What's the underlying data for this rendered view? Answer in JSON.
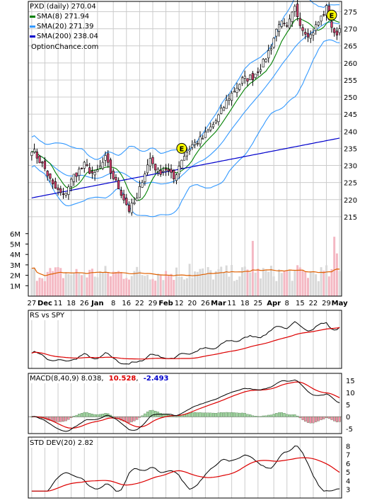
{
  "chart_data": [
    {
      "type": "candlestick",
      "title": "PXD (daily) 270.04",
      "source_label": "OptionChance.com",
      "legend": [
        {
          "label": "SMA(8) 271.94",
          "color": "#008000"
        },
        {
          "label": "SMA(20) 271.39",
          "color": "#3399ff"
        },
        {
          "label": "SMA(200) 238.04",
          "color": "#0000cc"
        }
      ],
      "ylim": [
        210,
        278
      ],
      "y_ticks": [
        275,
        270,
        265,
        260,
        255,
        250,
        245,
        240,
        235,
        230,
        225,
        220,
        215
      ],
      "volume_ticks": [
        "6M",
        "5M",
        "4M",
        "3M",
        "2M",
        "1M"
      ],
      "volume_lim": [
        0,
        6.8
      ],
      "x_labels": [
        "27",
        "Dec",
        "11",
        "18",
        "26",
        "Jan",
        "8",
        "16",
        "22",
        "29",
        "Feb",
        "12",
        "20",
        "26",
        "Mar",
        "11",
        "18",
        "25",
        "Apr",
        "8",
        "15",
        "22",
        "29",
        "May"
      ],
      "bold_x_labels": [
        "Dec",
        "Jan",
        "Feb",
        "Mar",
        "Apr",
        "May"
      ],
      "earnings_markers": [
        {
          "label": "E",
          "date_index": 57,
          "price": 235
        },
        {
          "label": "E",
          "date_index": 114,
          "price": 274
        }
      ],
      "close_anchors": [
        {
          "i": 0,
          "v": 235
        },
        {
          "i": 5,
          "v": 229
        },
        {
          "i": 8,
          "v": 224
        },
        {
          "i": 12,
          "v": 221
        },
        {
          "i": 16,
          "v": 227
        },
        {
          "i": 20,
          "v": 230
        },
        {
          "i": 24,
          "v": 227
        },
        {
          "i": 28,
          "v": 232
        },
        {
          "i": 30,
          "v": 228
        },
        {
          "i": 34,
          "v": 222
        },
        {
          "i": 37,
          "v": 217
        },
        {
          "i": 40,
          "v": 220
        },
        {
          "i": 42,
          "v": 226
        },
        {
          "i": 45,
          "v": 232
        },
        {
          "i": 48,
          "v": 228
        },
        {
          "i": 51,
          "v": 229
        },
        {
          "i": 54,
          "v": 226
        },
        {
          "i": 57,
          "v": 232
        },
        {
          "i": 61,
          "v": 236
        },
        {
          "i": 65,
          "v": 238
        },
        {
          "i": 70,
          "v": 243
        },
        {
          "i": 75,
          "v": 250
        },
        {
          "i": 80,
          "v": 255
        },
        {
          "i": 84,
          "v": 256
        },
        {
          "i": 88,
          "v": 260
        },
        {
          "i": 91,
          "v": 265
        },
        {
          "i": 94,
          "v": 272
        },
        {
          "i": 97,
          "v": 270
        },
        {
          "i": 100,
          "v": 276
        },
        {
          "i": 103,
          "v": 270
        },
        {
          "i": 106,
          "v": 268
        },
        {
          "i": 109,
          "v": 272
        },
        {
          "i": 112,
          "v": 276
        },
        {
          "i": 115,
          "v": 268
        },
        {
          "i": 117,
          "v": 270
        }
      ],
      "last_index": 117
    },
    {
      "type": "line",
      "title": "RS vs SPY",
      "series": [
        {
          "name": "RS vs SPY",
          "color": "#000000"
        },
        {
          "color": "#dd0000"
        }
      ]
    },
    {
      "type": "line",
      "title": "MACD(8,40,9) 8.038,",
      "values_label": [
        "10.528",
        "-2.493"
      ],
      "value_colors": [
        "#dd0000",
        "#0000cc"
      ],
      "ylim": [
        -7,
        18
      ],
      "y_ticks": [
        15,
        10,
        5,
        0,
        -5
      ],
      "series": [
        {
          "name": "MACD",
          "color": "#000000"
        },
        {
          "name": "Signal",
          "color": "#dd0000"
        },
        {
          "name": "Histogram",
          "color": "#339933"
        }
      ]
    },
    {
      "type": "line",
      "title": "STD DEV(20) 2.82",
      "ylim": [
        2,
        9
      ],
      "y_ticks": [
        8,
        7,
        6,
        5,
        4,
        3
      ],
      "series": [
        {
          "name": "STD DEV(20)",
          "color": "#000000"
        },
        {
          "color": "#dd0000"
        }
      ]
    }
  ]
}
